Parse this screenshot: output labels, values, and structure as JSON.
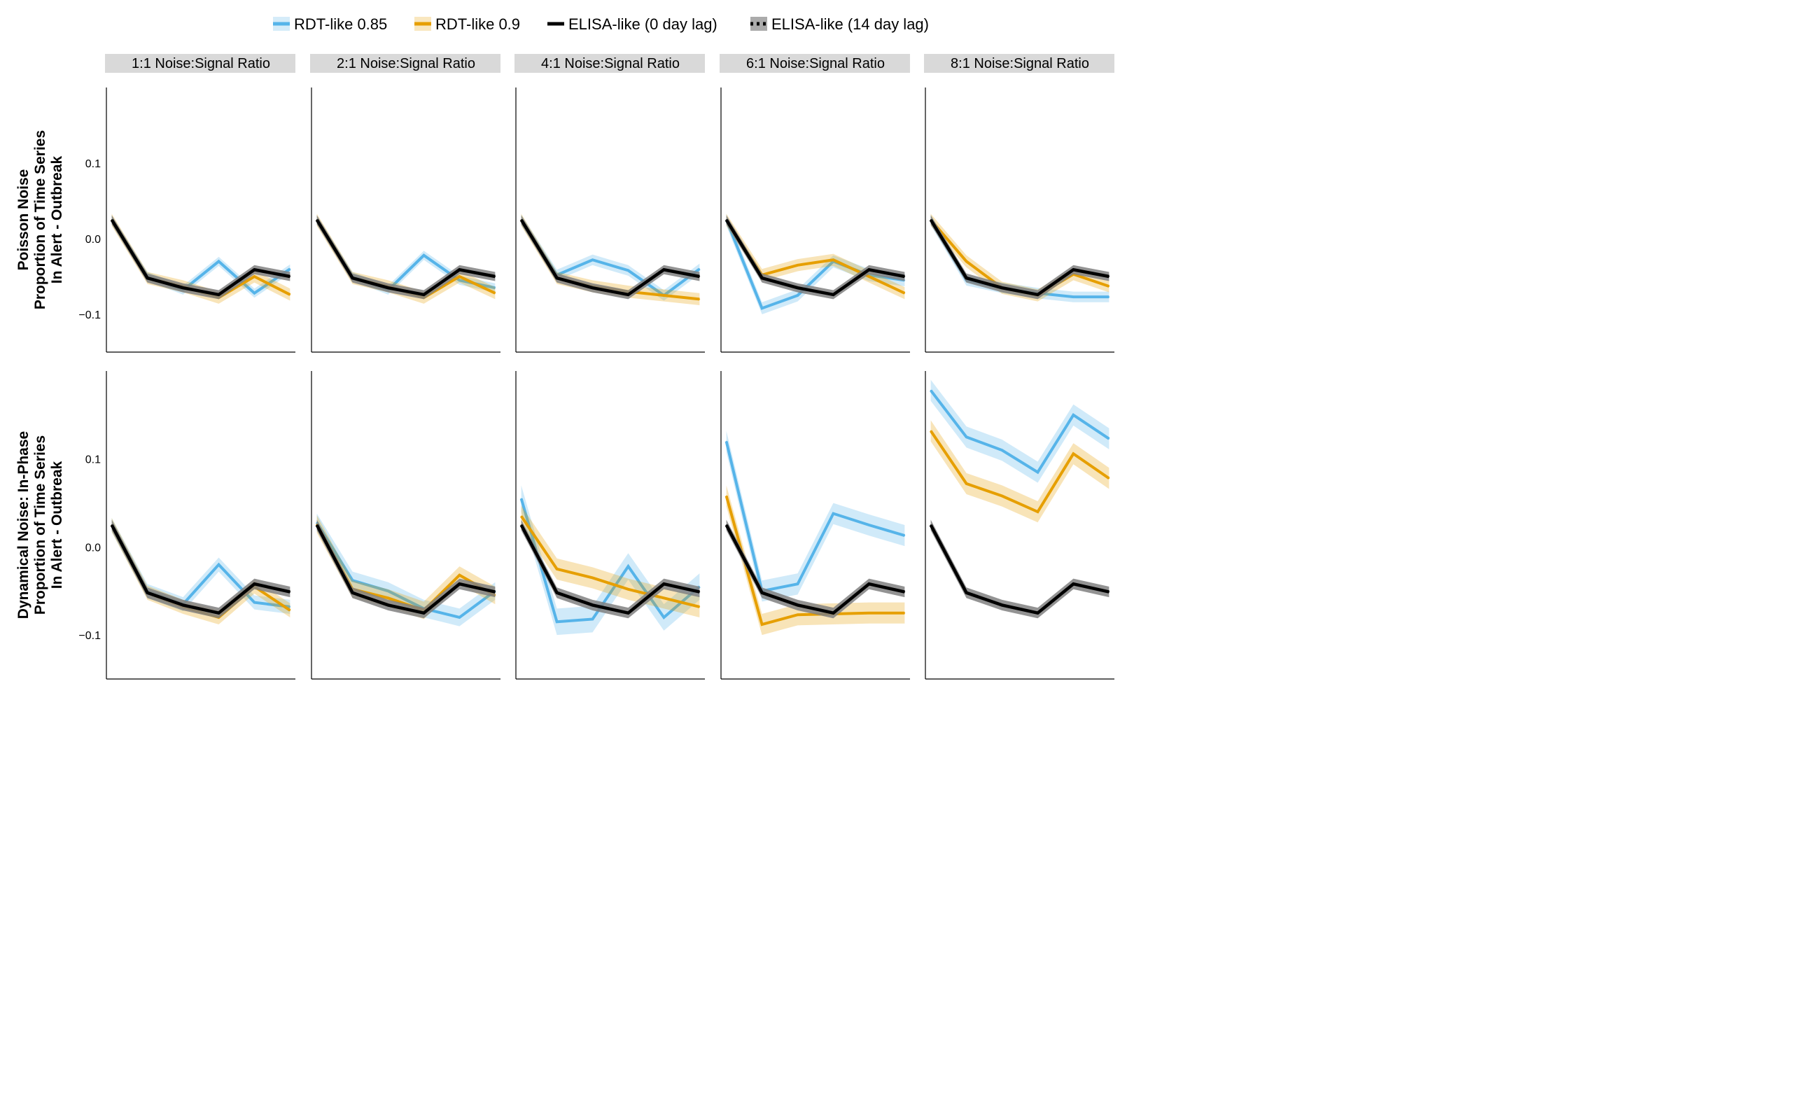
{
  "legend": [
    {
      "label": "RDT-like 0.85",
      "color": "#56b4e9",
      "style": "solid"
    },
    {
      "label": "RDT-like 0.9",
      "color": "#e69f00",
      "style": "solid"
    },
    {
      "label": "ELISA-like (0 day lag)",
      "color": "#000000",
      "style": "solid"
    },
    {
      "label": "ELISA-like (14 day lag)",
      "color": "#000000",
      "style": "dotted"
    }
  ],
  "chart_data": {
    "type": "line",
    "layout": "faceted grid (2 rows x 5 columns)",
    "legend_position": "top",
    "grid": false,
    "facet_columns": [
      "1:1 Noise:Signal Ratio",
      "2:1 Noise:Signal Ratio",
      "4:1 Noise:Signal Ratio",
      "6:1 Noise:Signal Ratio",
      "8:1 Noise:Signal Ratio"
    ],
    "facet_rows": [
      {
        "title_lines": [
          "Poisson Noise",
          "Proportion of Time Series",
          "In Alert - Outbreak"
        ],
        "yticks": [
          0.1,
          0.0,
          -0.1
        ],
        "ytick_labels": [
          "0.1",
          "0.0",
          "−0.1"
        ]
      },
      {
        "title_lines": [
          "Dynamical Noise: In-Phase",
          "Proportion of Time Series",
          "In Alert - Outbreak"
        ],
        "yticks": [
          0.1,
          0.0,
          -0.1
        ],
        "ytick_labels": [
          "0.1",
          "0.0",
          "−0.1"
        ]
      }
    ],
    "ylim": [
      [
        -0.15,
        0.2
      ],
      [
        -0.15,
        0.2
      ]
    ],
    "x": [
      1,
      2,
      3,
      4,
      5,
      6
    ],
    "xlim": [
      0.85,
      6.15
    ],
    "series_colors": {
      "rdt085": "#56b4e9",
      "rdt09": "#e69f00",
      "elisa": "#000000"
    },
    "panels": [
      {
        "row": 0,
        "col": 0,
        "series": [
          {
            "name": "RDT-like 0.85",
            "key": "rdt085",
            "values": [
              0.025,
              -0.05,
              -0.068,
              -0.03,
              -0.072,
              -0.04
            ],
            "band": 0.006
          },
          {
            "name": "RDT-like 0.9",
            "key": "rdt09",
            "values": [
              0.025,
              -0.052,
              -0.063,
              -0.078,
              -0.05,
              -0.074
            ],
            "band": 0.008
          },
          {
            "name": "ELISA-like (0 day lag)",
            "key": "elisa",
            "values": [
              0.025,
              -0.052,
              -0.065,
              -0.074,
              -0.041,
              -0.05
            ],
            "band": 0.006
          }
        ]
      },
      {
        "row": 0,
        "col": 1,
        "series": [
          {
            "name": "RDT-like 0.85",
            "key": "rdt085",
            "values": [
              0.025,
              -0.05,
              -0.068,
              -0.022,
              -0.055,
              -0.065
            ],
            "band": 0.006
          },
          {
            "name": "RDT-like 0.9",
            "key": "rdt09",
            "values": [
              0.025,
              -0.052,
              -0.063,
              -0.078,
              -0.05,
              -0.072
            ],
            "band": 0.008
          },
          {
            "name": "ELISA-like (0 day lag)",
            "key": "elisa",
            "values": [
              0.025,
              -0.052,
              -0.065,
              -0.074,
              -0.041,
              -0.05
            ],
            "band": 0.006
          }
        ]
      },
      {
        "row": 0,
        "col": 2,
        "series": [
          {
            "name": "RDT-like 0.85",
            "key": "rdt085",
            "values": [
              0.025,
              -0.048,
              -0.028,
              -0.042,
              -0.075,
              -0.04
            ],
            "band": 0.007
          },
          {
            "name": "RDT-like 0.9",
            "key": "rdt09",
            "values": [
              0.025,
              -0.052,
              -0.063,
              -0.07,
              -0.075,
              -0.08
            ],
            "band": 0.008
          },
          {
            "name": "ELISA-like (0 day lag)",
            "key": "elisa",
            "values": [
              0.025,
              -0.052,
              -0.065,
              -0.074,
              -0.041,
              -0.05
            ],
            "band": 0.006
          }
        ]
      },
      {
        "row": 0,
        "col": 3,
        "series": [
          {
            "name": "RDT-like 0.85",
            "key": "rdt085",
            "values": [
              0.025,
              -0.092,
              -0.075,
              -0.03,
              -0.048,
              -0.055
            ],
            "band": 0.008
          },
          {
            "name": "RDT-like 0.9",
            "key": "rdt09",
            "values": [
              0.025,
              -0.048,
              -0.035,
              -0.028,
              -0.05,
              -0.072
            ],
            "band": 0.008
          },
          {
            "name": "ELISA-like (0 day lag)",
            "key": "elisa",
            "values": [
              0.025,
              -0.052,
              -0.065,
              -0.074,
              -0.041,
              -0.05
            ],
            "band": 0.006
          }
        ]
      },
      {
        "row": 0,
        "col": 4,
        "series": [
          {
            "name": "RDT-like 0.85",
            "key": "rdt085",
            "values": [
              0.025,
              -0.055,
              -0.065,
              -0.072,
              -0.077,
              -0.077
            ],
            "band": 0.007
          },
          {
            "name": "RDT-like 0.9",
            "key": "rdt09",
            "values": [
              0.025,
              -0.03,
              -0.065,
              -0.075,
              -0.047,
              -0.063
            ],
            "band": 0.008
          },
          {
            "name": "ELISA-like (0 day lag)",
            "key": "elisa",
            "values": [
              0.025,
              -0.052,
              -0.065,
              -0.074,
              -0.041,
              -0.05
            ],
            "band": 0.006
          }
        ]
      },
      {
        "row": 1,
        "col": 0,
        "series": [
          {
            "name": "RDT-like 0.85",
            "key": "rdt085",
            "values": [
              0.025,
              -0.05,
              -0.065,
              -0.02,
              -0.063,
              -0.068
            ],
            "band": 0.008
          },
          {
            "name": "RDT-like 0.9",
            "key": "rdt09",
            "values": [
              0.025,
              -0.052,
              -0.068,
              -0.08,
              -0.045,
              -0.072
            ],
            "band": 0.008
          },
          {
            "name": "ELISA-like (0 day lag)",
            "key": "elisa",
            "values": [
              0.025,
              -0.052,
              -0.066,
              -0.075,
              -0.042,
              -0.051
            ],
            "band": 0.006
          }
        ]
      },
      {
        "row": 1,
        "col": 1,
        "series": [
          {
            "name": "RDT-like 0.85",
            "key": "rdt085",
            "values": [
              0.028,
              -0.038,
              -0.05,
              -0.07,
              -0.08,
              -0.05
            ],
            "band": 0.01
          },
          {
            "name": "RDT-like 0.9",
            "key": "rdt09",
            "values": [
              0.026,
              -0.048,
              -0.058,
              -0.072,
              -0.032,
              -0.055
            ],
            "band": 0.01
          },
          {
            "name": "ELISA-like (0 day lag)",
            "key": "elisa",
            "values": [
              0.025,
              -0.052,
              -0.066,
              -0.075,
              -0.042,
              -0.051
            ],
            "band": 0.006
          }
        ]
      },
      {
        "row": 1,
        "col": 2,
        "series": [
          {
            "name": "RDT-like 0.85",
            "key": "rdt085",
            "values": [
              0.055,
              -0.085,
              -0.082,
              -0.022,
              -0.08,
              -0.045
            ],
            "band": 0.015
          },
          {
            "name": "RDT-like 0.9",
            "key": "rdt09",
            "values": [
              0.035,
              -0.025,
              -0.035,
              -0.048,
              -0.058,
              -0.068
            ],
            "band": 0.012
          },
          {
            "name": "ELISA-like (0 day lag)",
            "key": "elisa",
            "values": [
              0.025,
              -0.052,
              -0.066,
              -0.075,
              -0.042,
              -0.051
            ],
            "band": 0.006
          }
        ]
      },
      {
        "row": 1,
        "col": 3,
        "series": [
          {
            "name": "RDT-like 0.85",
            "key": "rdt085",
            "values": [
              0.12,
              -0.05,
              -0.042,
              0.038,
              0.025,
              0.013
            ],
            "band": 0.012
          },
          {
            "name": "RDT-like 0.9",
            "key": "rdt09",
            "values": [
              0.058,
              -0.088,
              -0.077,
              -0.076,
              -0.075,
              -0.075
            ],
            "band": 0.012
          },
          {
            "name": "ELISA-like (0 day lag)",
            "key": "elisa",
            "values": [
              0.025,
              -0.052,
              -0.066,
              -0.075,
              -0.042,
              -0.051
            ],
            "band": 0.006
          }
        ]
      },
      {
        "row": 1,
        "col": 4,
        "series": [
          {
            "name": "RDT-like 0.85",
            "key": "rdt085",
            "values": [
              0.178,
              0.125,
              0.11,
              0.085,
              0.15,
              0.123
            ],
            "band": 0.012
          },
          {
            "name": "RDT-like 0.9",
            "key": "rdt09",
            "values": [
              0.132,
              0.072,
              0.058,
              0.04,
              0.106,
              0.078
            ],
            "band": 0.012
          },
          {
            "name": "ELISA-like (0 day lag)",
            "key": "elisa",
            "values": [
              0.025,
              -0.052,
              -0.066,
              -0.075,
              -0.042,
              -0.051
            ],
            "band": 0.006
          }
        ]
      }
    ]
  }
}
